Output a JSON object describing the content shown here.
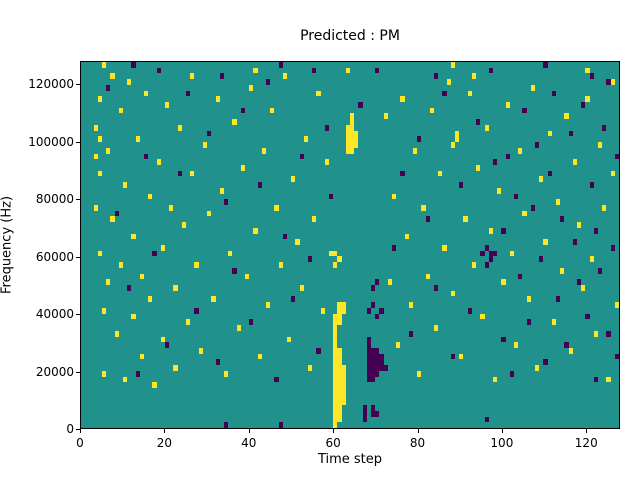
{
  "figure": {
    "background": "#ffffff"
  },
  "chart_data": {
    "type": "heatmap",
    "title": "Predicted : PM",
    "xlabel": "Time step",
    "ylabel": "Frequency (Hz)",
    "x_range": [
      0,
      128
    ],
    "y_range": [
      0,
      128000
    ],
    "x_ticks": [
      0,
      20,
      40,
      60,
      80,
      100,
      120
    ],
    "y_ticks": [
      0,
      20000,
      40000,
      60000,
      80000,
      100000,
      120000
    ],
    "grid": {
      "cols": 128,
      "rows": 64,
      "hz_per_row": 2000
    },
    "legend": "none",
    "colors": {
      "background": "#21918c",
      "high": "#fde725",
      "low": "#440154"
    },
    "cells": {
      "high": [
        [
          3,
          52
        ],
        [
          3,
          47
        ],
        [
          3,
          38
        ],
        [
          4,
          57
        ],
        [
          4,
          50
        ],
        [
          4,
          44
        ],
        [
          4,
          30
        ],
        [
          5,
          63
        ],
        [
          5,
          20
        ],
        [
          5,
          9
        ],
        [
          6,
          48
        ],
        [
          6,
          25
        ],
        [
          7,
          61
        ],
        [
          7,
          36
        ],
        [
          8,
          16
        ],
        [
          9,
          55
        ],
        [
          9,
          28
        ],
        [
          10,
          42
        ],
        [
          10,
          8
        ],
        [
          11,
          60
        ],
        [
          12,
          33
        ],
        [
          12,
          19
        ],
        [
          13,
          50
        ],
        [
          14,
          26
        ],
        [
          14,
          12
        ],
        [
          15,
          58
        ],
        [
          16,
          40
        ],
        [
          16,
          22
        ],
        [
          17,
          7
        ],
        [
          18,
          46
        ],
        [
          19,
          31
        ],
        [
          19,
          15
        ],
        [
          20,
          56
        ],
        [
          21,
          38
        ],
        [
          22,
          24
        ],
        [
          22,
          10
        ],
        [
          23,
          52
        ],
        [
          24,
          35
        ],
        [
          25,
          18
        ],
        [
          26,
          61
        ],
        [
          26,
          44
        ],
        [
          27,
          28
        ],
        [
          28,
          13
        ],
        [
          29,
          49
        ],
        [
          30,
          37
        ],
        [
          31,
          22
        ],
        [
          32,
          57
        ],
        [
          33,
          41
        ],
        [
          34,
          9
        ],
        [
          35,
          30
        ],
        [
          36,
          53
        ],
        [
          37,
          17
        ],
        [
          38,
          45
        ],
        [
          39,
          26
        ],
        [
          40,
          59
        ],
        [
          41,
          62
        ],
        [
          41,
          34
        ],
        [
          42,
          12
        ],
        [
          43,
          48
        ],
        [
          44,
          21
        ],
        [
          45,
          55
        ],
        [
          46,
          38
        ],
        [
          47,
          28
        ],
        [
          48,
          61
        ],
        [
          49,
          15
        ],
        [
          50,
          43
        ],
        [
          51,
          32
        ],
        [
          52,
          24
        ],
        [
          53,
          50
        ],
        [
          54,
          10
        ],
        [
          55,
          36
        ],
        [
          56,
          58
        ],
        [
          57,
          20
        ],
        [
          58,
          46
        ],
        [
          59,
          30
        ],
        [
          63,
          62
        ],
        [
          72,
          54
        ],
        [
          73,
          25
        ],
        [
          74,
          40
        ],
        [
          75,
          14
        ],
        [
          76,
          57
        ],
        [
          77,
          33
        ],
        [
          78,
          21
        ],
        [
          79,
          48
        ],
        [
          80,
          9
        ],
        [
          81,
          38
        ],
        [
          82,
          26
        ],
        [
          83,
          55
        ],
        [
          84,
          17
        ],
        [
          85,
          44
        ],
        [
          86,
          31
        ],
        [
          87,
          60
        ],
        [
          88,
          63
        ],
        [
          88,
          49
        ],
        [
          88,
          23
        ],
        [
          89,
          51
        ],
        [
          89,
          50
        ],
        [
          90,
          12
        ],
        [
          91,
          36
        ],
        [
          92,
          58
        ],
        [
          93,
          61
        ],
        [
          93,
          28
        ],
        [
          94,
          45
        ],
        [
          95,
          19
        ],
        [
          96,
          52
        ],
        [
          97,
          34
        ],
        [
          98,
          8
        ],
        [
          99,
          41
        ],
        [
          100,
          25
        ],
        [
          101,
          56
        ],
        [
          102,
          30
        ],
        [
          103,
          14
        ],
        [
          104,
          48
        ],
        [
          105,
          37
        ],
        [
          106,
          22
        ],
        [
          107,
          59
        ],
        [
          108,
          10
        ],
        [
          109,
          43
        ],
        [
          110,
          32
        ],
        [
          111,
          51
        ],
        [
          112,
          18
        ],
        [
          113,
          39
        ],
        [
          114,
          27
        ],
        [
          115,
          54
        ],
        [
          116,
          13
        ],
        [
          117,
          46
        ],
        [
          118,
          35
        ],
        [
          119,
          24
        ],
        [
          120,
          62
        ],
        [
          120,
          57
        ],
        [
          121,
          29
        ],
        [
          122,
          16
        ],
        [
          123,
          49
        ],
        [
          124,
          38
        ],
        [
          125,
          8
        ],
        [
          126,
          60
        ],
        [
          126,
          44
        ],
        [
          127,
          21
        ],
        [
          60,
          0
        ],
        [
          60,
          1
        ],
        [
          60,
          2
        ],
        [
          60,
          3
        ],
        [
          60,
          4
        ],
        [
          60,
          5
        ],
        [
          60,
          6
        ],
        [
          60,
          7
        ],
        [
          60,
          8
        ],
        [
          60,
          9
        ],
        [
          60,
          10
        ],
        [
          60,
          11
        ],
        [
          60,
          12
        ],
        [
          60,
          13
        ],
        [
          60,
          14
        ],
        [
          60,
          15
        ],
        [
          60,
          16
        ],
        [
          60,
          17
        ],
        [
          60,
          18
        ],
        [
          60,
          19
        ],
        [
          60,
          28
        ],
        [
          60,
          30
        ],
        [
          61,
          1
        ],
        [
          61,
          2
        ],
        [
          61,
          3
        ],
        [
          61,
          4
        ],
        [
          61,
          5
        ],
        [
          61,
          6
        ],
        [
          61,
          7
        ],
        [
          61,
          8
        ],
        [
          61,
          9
        ],
        [
          61,
          10
        ],
        [
          61,
          11
        ],
        [
          61,
          12
        ],
        [
          61,
          13
        ],
        [
          61,
          18
        ],
        [
          61,
          19
        ],
        [
          61,
          20
        ],
        [
          61,
          21
        ],
        [
          61,
          29
        ],
        [
          62,
          4
        ],
        [
          62,
          5
        ],
        [
          62,
          6
        ],
        [
          62,
          7
        ],
        [
          62,
          8
        ],
        [
          62,
          9
        ],
        [
          62,
          10
        ],
        [
          62,
          20
        ],
        [
          62,
          21
        ],
        [
          63,
          48
        ],
        [
          63,
          49
        ],
        [
          63,
          50
        ],
        [
          63,
          51
        ],
        [
          63,
          52
        ],
        [
          64,
          48
        ],
        [
          64,
          49
        ],
        [
          64,
          50
        ],
        [
          64,
          51
        ],
        [
          64,
          52
        ],
        [
          64,
          53
        ],
        [
          64,
          54
        ],
        [
          65,
          49
        ],
        [
          65,
          50
        ],
        [
          65,
          51
        ]
      ],
      "low": [
        [
          6,
          59
        ],
        [
          8,
          37
        ],
        [
          11,
          24
        ],
        [
          12,
          63
        ],
        [
          13,
          9
        ],
        [
          15,
          47
        ],
        [
          17,
          30
        ],
        [
          18,
          62
        ],
        [
          20,
          14
        ],
        [
          23,
          44
        ],
        [
          25,
          58
        ],
        [
          27,
          20
        ],
        [
          30,
          51
        ],
        [
          32,
          11
        ],
        [
          33,
          61
        ],
        [
          34,
          39
        ],
        [
          34,
          0
        ],
        [
          36,
          27
        ],
        [
          38,
          55
        ],
        [
          40,
          18
        ],
        [
          42,
          42
        ],
        [
          44,
          60
        ],
        [
          46,
          8
        ],
        [
          47,
          63
        ],
        [
          47,
          0
        ],
        [
          48,
          33
        ],
        [
          50,
          22
        ],
        [
          52,
          47
        ],
        [
          54,
          29
        ],
        [
          55,
          62
        ],
        [
          56,
          13
        ],
        [
          58,
          52
        ],
        [
          59,
          40
        ],
        [
          66,
          56
        ],
        [
          70,
          62
        ],
        [
          72,
          10
        ],
        [
          74,
          31
        ],
        [
          76,
          44
        ],
        [
          78,
          16
        ],
        [
          80,
          50
        ],
        [
          82,
          36
        ],
        [
          84,
          61
        ],
        [
          84,
          24
        ],
        [
          86,
          58
        ],
        [
          88,
          12
        ],
        [
          90,
          42
        ],
        [
          92,
          20
        ],
        [
          94,
          53
        ],
        [
          95,
          30
        ],
        [
          96,
          31
        ],
        [
          96,
          28
        ],
        [
          96,
          1
        ],
        [
          97,
          62
        ],
        [
          97,
          30
        ],
        [
          97,
          29
        ],
        [
          98,
          46
        ],
        [
          98,
          30
        ],
        [
          100,
          34
        ],
        [
          100,
          15
        ],
        [
          101,
          47
        ],
        [
          102,
          9
        ],
        [
          103,
          40
        ],
        [
          104,
          26
        ],
        [
          105,
          55
        ],
        [
          106,
          18
        ],
        [
          107,
          38
        ],
        [
          108,
          49
        ],
        [
          109,
          29
        ],
        [
          110,
          63
        ],
        [
          110,
          11
        ],
        [
          111,
          44
        ],
        [
          112,
          58
        ],
        [
          113,
          22
        ],
        [
          114,
          36
        ],
        [
          115,
          14
        ],
        [
          116,
          51
        ],
        [
          117,
          32
        ],
        [
          118,
          25
        ],
        [
          119,
          56
        ],
        [
          120,
          19
        ],
        [
          121,
          61
        ],
        [
          121,
          42
        ],
        [
          122,
          34
        ],
        [
          122,
          8
        ],
        [
          123,
          27
        ],
        [
          124,
          52
        ],
        [
          125,
          60
        ],
        [
          125,
          16
        ],
        [
          126,
          31
        ],
        [
          127,
          47
        ],
        [
          127,
          12
        ],
        [
          67,
          1
        ],
        [
          67,
          2
        ],
        [
          67,
          3
        ],
        [
          68,
          8
        ],
        [
          68,
          9
        ],
        [
          68,
          10
        ],
        [
          68,
          11
        ],
        [
          68,
          12
        ],
        [
          68,
          13
        ],
        [
          68,
          14
        ],
        [
          68,
          15
        ],
        [
          68,
          20
        ],
        [
          69,
          2
        ],
        [
          69,
          3
        ],
        [
          69,
          8
        ],
        [
          69,
          9
        ],
        [
          69,
          10
        ],
        [
          69,
          11
        ],
        [
          69,
          12
        ],
        [
          69,
          13
        ],
        [
          69,
          21
        ],
        [
          69,
          24
        ],
        [
          70,
          2
        ],
        [
          70,
          9
        ],
        [
          70,
          10
        ],
        [
          70,
          11
        ],
        [
          70,
          12
        ],
        [
          70,
          13
        ],
        [
          70,
          19
        ],
        [
          70,
          25
        ],
        [
          71,
          10
        ],
        [
          71,
          11
        ],
        [
          71,
          12
        ],
        [
          71,
          20
        ]
      ]
    }
  }
}
